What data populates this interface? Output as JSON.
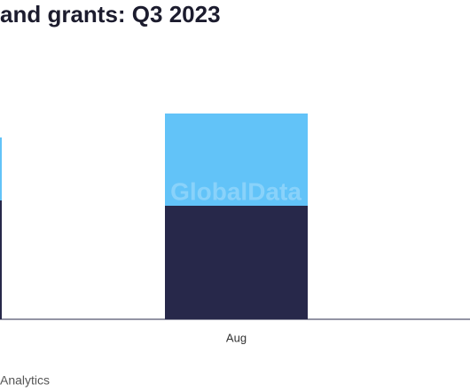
{
  "chart_data": {
    "type": "bar",
    "stacked": true,
    "title": "and grants: Q3 2023",
    "watermark": "GlobalData",
    "source": "Analytics",
    "categories": [
      null,
      "Aug"
    ],
    "series": [
      {
        "color": "#27284a",
        "values": [
          134,
          128
        ]
      },
      {
        "color": "#62c3f8",
        "values": [
          71,
          104
        ]
      }
    ],
    "ylim": [
      0,
      240
    ]
  }
}
